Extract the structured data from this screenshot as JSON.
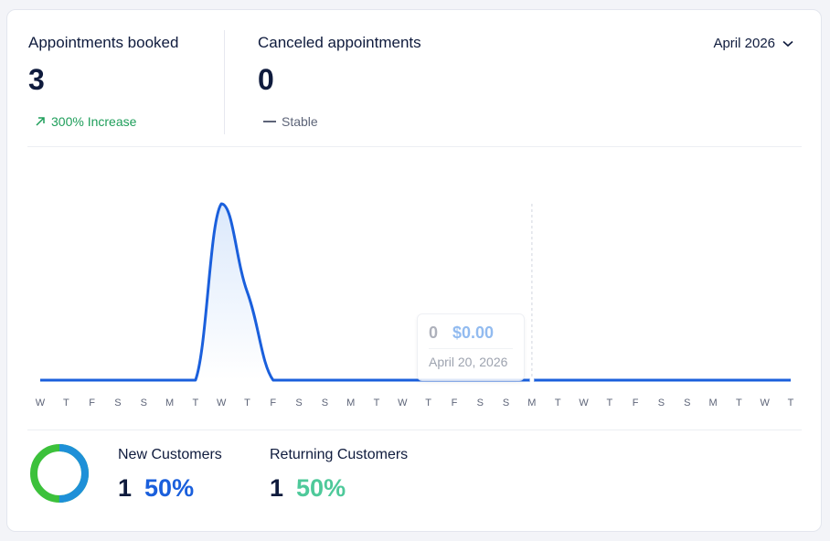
{
  "stats": {
    "booked": {
      "title": "Appointments booked",
      "value": "3",
      "trend": "300% Increase"
    },
    "canceled": {
      "title": "Canceled appointments",
      "value": "0",
      "trend": "Stable"
    }
  },
  "month_selector": {
    "label": "April 2026",
    "icon": "chevron-down-icon"
  },
  "chart_data": {
    "type": "area",
    "x": [
      "W",
      "T",
      "F",
      "S",
      "S",
      "M",
      "T",
      "W",
      "T",
      "F",
      "S",
      "S",
      "M",
      "T",
      "W",
      "T",
      "F",
      "S",
      "S",
      "M",
      "T",
      "W",
      "T",
      "F",
      "S",
      "S",
      "M",
      "T",
      "W",
      "T"
    ],
    "series": [
      {
        "values": [
          0,
          0,
          0,
          0,
          0,
          0,
          0,
          2,
          1,
          0,
          0,
          0,
          0,
          0,
          0,
          0,
          0,
          0,
          0,
          0,
          0,
          0,
          0,
          0,
          0,
          0,
          0,
          0,
          0,
          0
        ]
      }
    ],
    "ylim": [
      0,
      2
    ],
    "grid": false,
    "line_color": "#1a5fdc",
    "fill_color": "#d7e6fb",
    "hover_index": 19
  },
  "tooltip": {
    "count": "0",
    "amount": "$0.00",
    "date": "April 20, 2026"
  },
  "customers": {
    "new": {
      "title": "New Customers",
      "count": "1",
      "percent": "50%"
    },
    "returning": {
      "title": "Returning Customers",
      "count": "1",
      "percent": "50%"
    },
    "donut": {
      "new_fraction": 0.5,
      "new_color": "#1e90d8",
      "returning_color": "#3cc13b"
    }
  },
  "colors": {
    "increase": "#1e9e5a",
    "stable": "#5d6478",
    "accent": "#1a5fdc"
  }
}
